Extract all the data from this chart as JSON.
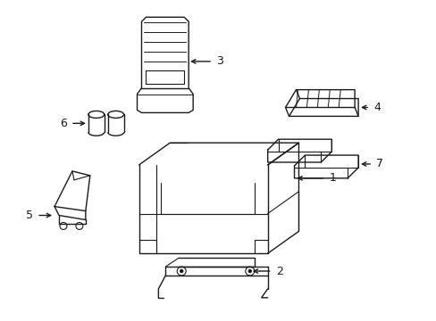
{
  "background_color": "#ffffff",
  "line_color": "#1a1a1a",
  "line_width": 1.0,
  "label_fontsize": 9,
  "parts": [
    "1",
    "2",
    "3",
    "4",
    "5",
    "6",
    "7"
  ]
}
